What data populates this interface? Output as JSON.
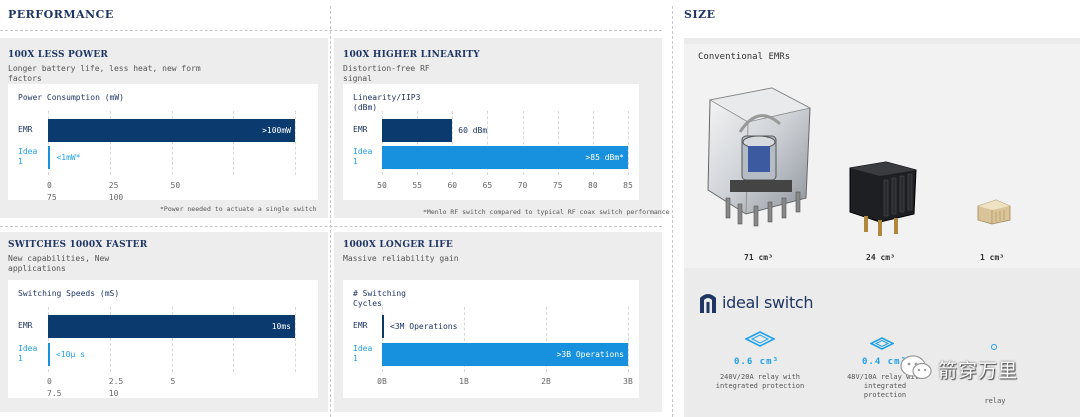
{
  "performance": {
    "title": "PERFORMANCE",
    "panels": [
      {
        "title": "100X LESS POWER",
        "subtitle_lines": [
          "Longer battery life, less heat, new form",
          "factors"
        ],
        "chart_title_lines": [
          "Power Consumption (mW)"
        ],
        "note": "*Power needed to actuate a single switch"
      },
      {
        "title": "100X HIGHER LINEARITY",
        "subtitle_lines": [
          "Distortion-free RF",
          "signal"
        ],
        "chart_title_lines": [
          "Linearity/IIP3",
          "(dBm)"
        ],
        "note": "*Menlo RF switch compared to typical RF coax switch performance"
      },
      {
        "title": "SWITCHES 1000X FASTER",
        "subtitle_lines": [
          "New capabilities, New",
          "applications"
        ],
        "chart_title_lines": [
          "Switching Speeds (mS)"
        ],
        "note": ""
      },
      {
        "title": "1000X LONGER LIFE",
        "subtitle_lines": [
          "Massive reliability gain"
        ],
        "chart_title_lines": [
          "# Switching",
          "Cycles"
        ],
        "note": ""
      }
    ]
  },
  "chart_data": [
    {
      "type": "bar",
      "orientation": "horizontal",
      "title": "Power Consumption (mW)",
      "categories": [
        "EMR",
        "Idea 1"
      ],
      "values": [
        100,
        1
      ],
      "data_labels": [
        ">100mW",
        "<1mW*"
      ],
      "xlim": [
        0,
        100
      ],
      "tick_labels": [
        "0",
        "25",
        "50",
        "75",
        "100"
      ],
      "colors": [
        "#0b3a6e",
        "#1791de"
      ]
    },
    {
      "type": "bar",
      "orientation": "horizontal",
      "title": "Linearity/IIP3 (dBm)",
      "categories": [
        "EMR",
        "Idea 1"
      ],
      "values": [
        60,
        85
      ],
      "data_labels": [
        "60 dBm",
        ">85 dBm*"
      ],
      "xlim": [
        50,
        85
      ],
      "tick_labels": [
        "50",
        "55",
        "60",
        "65",
        "70",
        "75",
        "80",
        "85"
      ],
      "colors": [
        "#0b3a6e",
        "#1791de"
      ]
    },
    {
      "type": "bar",
      "orientation": "horizontal",
      "title": "Switching Speeds (mS)",
      "categories": [
        "EMR",
        "Idea 1"
      ],
      "values": [
        10,
        0.01
      ],
      "data_labels": [
        "10ms",
        "<10μ s"
      ],
      "xlim": [
        0,
        10
      ],
      "tick_labels": [
        "0",
        "2.5",
        "5",
        "7.5",
        "10"
      ],
      "colors": [
        "#0b3a6e",
        "#1791de"
      ]
    },
    {
      "type": "bar",
      "orientation": "horizontal",
      "title": "# Switching Cycles",
      "categories": [
        "EMR",
        "Idea 1"
      ],
      "values": [
        0.003,
        3
      ],
      "data_labels": [
        "<3M Operations",
        ">3B Operations"
      ],
      "xlim": [
        0,
        3
      ],
      "tick_labels": [
        "0B",
        "1B",
        "2B",
        "3B"
      ],
      "colors": [
        "#0b3a6e",
        "#1791de"
      ]
    }
  ],
  "size": {
    "title": "SIZE",
    "conventional_label": "Conventional EMRs",
    "items": [
      {
        "caption": "71 cm³"
      },
      {
        "caption": "24 cm³"
      },
      {
        "caption": "1 cm³"
      }
    ],
    "brand": "ideal switch",
    "features": [
      {
        "value": "0.6 cm³",
        "desc_lines": [
          "240V/20A relay with",
          "integrated protection"
        ]
      },
      {
        "value": "0.4 cm³",
        "desc_lines": [
          "48V/10A relay with",
          "integrated",
          "protection"
        ]
      },
      {
        "value": "",
        "desc_lines": [
          "relay"
        ]
      }
    ],
    "watermark": "箭穿万里",
    "colors": {
      "navy": "#1f3564",
      "accent": "#1ea0e8"
    }
  }
}
